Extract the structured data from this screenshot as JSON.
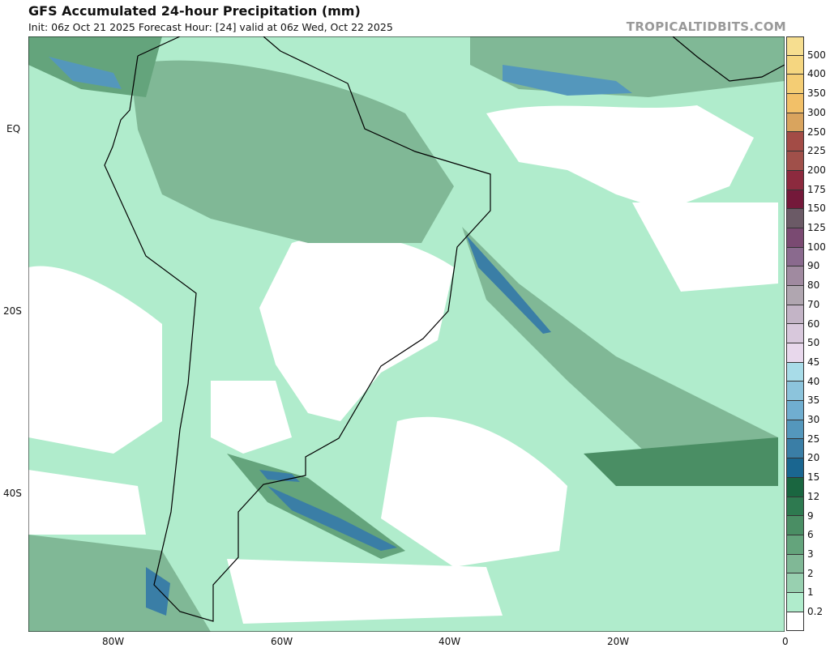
{
  "header": {
    "title": "GFS Accumulated 24-hour Precipitation (mm)",
    "subtitle": "Init: 06z Oct 21 2025   Forecast Hour: [24]   valid at 06z Wed, Oct 22 2025",
    "brand": "TROPICALTIDBITS.COM"
  },
  "axes": {
    "lat_labels": [
      "EQ",
      "20S",
      "40S"
    ],
    "lon_labels": [
      "80W",
      "60W",
      "40W",
      "20W",
      "0"
    ]
  },
  "legend": {
    "labels": [
      "500",
      "400",
      "350",
      "300",
      "250",
      "225",
      "200",
      "175",
      "150",
      "125",
      "100",
      "90",
      "80",
      "70",
      "60",
      "50",
      "45",
      "40",
      "35",
      "30",
      "25",
      "20",
      "15",
      "12",
      "9",
      "6",
      "3",
      "2",
      "1",
      "0.2"
    ],
    "colors": [
      "#f6de90",
      "#f5d680",
      "#f4cd74",
      "#f2c068",
      "#d9a45e",
      "#a34c46",
      "#a0504a",
      "#8c2a3e",
      "#74193a",
      "#6b5a66",
      "#7a4a72",
      "#8a6a8e",
      "#a08aa0",
      "#b0a6b0",
      "#c3b4c6",
      "#d8c8dc",
      "#e8d8ec",
      "#a8dce8",
      "#8cc4dc",
      "#70aed0",
      "#5497bc",
      "#3a7ea6",
      "#1a6690",
      "#1a6640",
      "#2e7a50",
      "#4a8e64",
      "#64a47c",
      "#80b896",
      "#98d0b0",
      "#b0eccc",
      "#ffffff"
    ]
  }
}
